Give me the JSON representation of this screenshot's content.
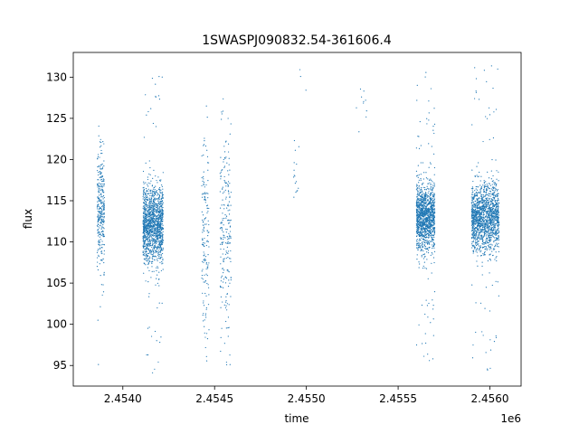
{
  "chart_data": {
    "type": "scatter",
    "title": "1SWASPJ090832.54-361606.4",
    "xlabel": "time",
    "ylabel": "flux",
    "x_offset_label": "1e6",
    "xlim": [
      2453730,
      2456170
    ],
    "ylim": [
      92.5,
      133.0
    ],
    "xticks": [
      2454000,
      2454500,
      2455000,
      2455500,
      2456000
    ],
    "xtick_labels": [
      "2.4540",
      "2.4545",
      "2.4550",
      "2.4555",
      "2.4560"
    ],
    "yticks": [
      95,
      100,
      105,
      110,
      115,
      120,
      125,
      130
    ],
    "ytick_labels": [
      "95",
      "100",
      "105",
      "110",
      "115",
      "120",
      "125",
      "130"
    ],
    "grid": false,
    "marker_color": "#1f77b4",
    "series": [
      {
        "segments": [
          {
            "x_start": 2453860,
            "x_end": 2453900,
            "center": 114,
            "spread": 3.5,
            "y_min": 94,
            "y_max": 125,
            "count": 320
          },
          {
            "x_start": 2454110,
            "x_end": 2454220,
            "center": 112,
            "spread": 2.3,
            "y_min": 94,
            "y_max": 131,
            "count": 1400
          },
          {
            "x_start": 2454430,
            "x_end": 2454470,
            "center": 111,
            "spread": 6.5,
            "y_min": 95,
            "y_max": 127,
            "count": 160
          },
          {
            "x_start": 2454530,
            "x_end": 2454590,
            "center": 111,
            "spread": 6.0,
            "y_min": 95,
            "y_max": 129,
            "count": 220
          },
          {
            "x_start": 2454930,
            "x_end": 2454960,
            "center": 119,
            "spread": 2.5,
            "y_min": 114,
            "y_max": 123,
            "count": 20
          },
          {
            "x_start": 2454960,
            "x_end": 2455000,
            "center": 129,
            "spread": 1.2,
            "y_min": 127,
            "y_max": 131,
            "count": 4
          },
          {
            "x_start": 2455270,
            "x_end": 2455330,
            "center": 126,
            "spread": 2.5,
            "y_min": 122,
            "y_max": 130,
            "count": 14
          },
          {
            "x_start": 2455600,
            "x_end": 2455700,
            "center": 113,
            "spread": 2.0,
            "y_min": 95,
            "y_max": 131,
            "count": 1300
          },
          {
            "x_start": 2455900,
            "x_end": 2456050,
            "center": 113,
            "spread": 2.0,
            "y_min": 94,
            "y_max": 132,
            "count": 1500
          }
        ]
      }
    ]
  }
}
